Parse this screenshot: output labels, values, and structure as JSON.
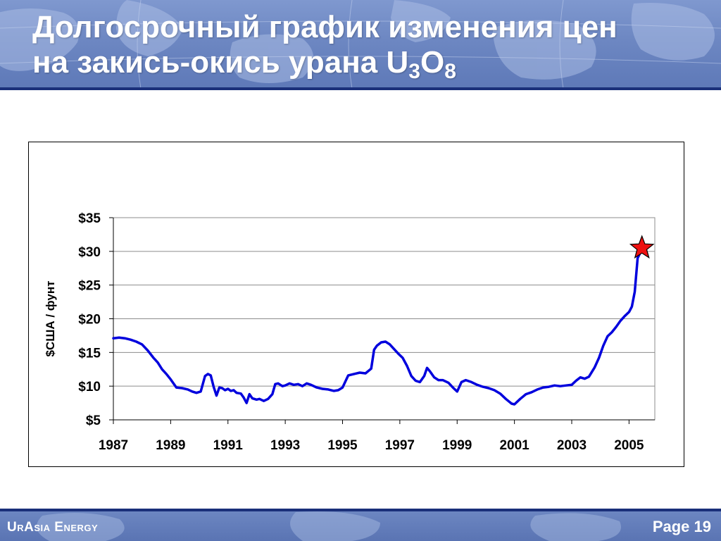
{
  "header": {
    "title_line1": "Долгосрочный график изменения цен",
    "title_line2_text": "на  закись-окись урана U",
    "title_sub_3": "3",
    "title_o": "O",
    "title_sub_8": "8"
  },
  "footer": {
    "brand": "UrAsia Energy",
    "page_label": "Page 19"
  },
  "colors": {
    "line": "#0000dd",
    "star": "#ee1111",
    "header_rule": "#1a2f7a"
  },
  "chart_data": {
    "type": "line",
    "title": "",
    "xlabel": "",
    "ylabel": "$США / фунт",
    "xlim": [
      1987,
      2005.9
    ],
    "ylim": [
      5,
      35
    ],
    "y_ticks": [
      5,
      10,
      15,
      20,
      25,
      30,
      35
    ],
    "y_tick_labels": [
      "$5",
      "$10",
      "$15",
      "$20",
      "$25",
      "$30",
      "$35"
    ],
    "x_ticks": [
      1987,
      1989,
      1991,
      1993,
      1995,
      1997,
      1999,
      2001,
      2003,
      2005
    ],
    "x_tick_labels": [
      "1987",
      "1989",
      "1991",
      "1993",
      "1995",
      "1997",
      "1999",
      "2001",
      "2003",
      "2005"
    ],
    "grid": true,
    "marker": {
      "shape": "star",
      "x": 2005.45,
      "y": 30.5
    },
    "series": [
      {
        "name": "",
        "x": [
          1987.0,
          1987.2,
          1987.4,
          1987.6,
          1987.8,
          1988.0,
          1988.2,
          1988.4,
          1988.55,
          1988.7,
          1988.85,
          1989.0,
          1989.2,
          1989.4,
          1989.6,
          1989.75,
          1989.9,
          1990.05,
          1990.2,
          1990.3,
          1990.4,
          1990.5,
          1990.6,
          1990.7,
          1990.8,
          1990.9,
          1991.0,
          1991.1,
          1991.2,
          1991.3,
          1991.45,
          1991.55,
          1991.65,
          1991.75,
          1991.85,
          1992.0,
          1992.1,
          1992.25,
          1992.4,
          1992.55,
          1992.65,
          1992.75,
          1992.9,
          1993.0,
          1993.15,
          1993.3,
          1993.45,
          1993.6,
          1993.75,
          1993.9,
          1994.1,
          1994.3,
          1994.5,
          1994.7,
          1994.85,
          1995.0,
          1995.2,
          1995.4,
          1995.6,
          1995.8,
          1996.0,
          1996.1,
          1996.2,
          1996.35,
          1996.5,
          1996.65,
          1996.8,
          1996.95,
          1997.1,
          1997.25,
          1997.4,
          1997.55,
          1997.7,
          1997.85,
          1997.95,
          1998.05,
          1998.2,
          1998.35,
          1998.5,
          1998.7,
          1998.85,
          1999.0,
          1999.15,
          1999.3,
          1999.5,
          1999.7,
          1999.9,
          2000.1,
          2000.3,
          2000.5,
          2000.7,
          2000.9,
          2001.0,
          2001.2,
          2001.4,
          2001.6,
          2001.8,
          2002.0,
          2002.2,
          2002.4,
          2002.6,
          2002.8,
          2003.0,
          2003.15,
          2003.3,
          2003.45,
          2003.6,
          2003.8,
          2003.95,
          2004.1,
          2004.25,
          2004.4,
          2004.55,
          2004.7,
          2004.85,
          2005.0,
          2005.1,
          2005.2,
          2005.3,
          2005.45
        ],
        "values": [
          17.1,
          17.2,
          17.1,
          16.9,
          16.6,
          16.2,
          15.3,
          14.2,
          13.5,
          12.5,
          11.8,
          11.0,
          9.8,
          9.7,
          9.5,
          9.2,
          9.0,
          9.2,
          11.5,
          11.8,
          11.6,
          9.9,
          8.6,
          9.8,
          9.7,
          9.4,
          9.6,
          9.3,
          9.4,
          9.0,
          8.9,
          8.3,
          7.5,
          8.8,
          8.2,
          8.0,
          8.1,
          7.8,
          8.1,
          8.8,
          10.3,
          10.4,
          10.0,
          10.1,
          10.4,
          10.2,
          10.3,
          10.0,
          10.4,
          10.2,
          9.8,
          9.6,
          9.5,
          9.3,
          9.4,
          9.8,
          11.6,
          11.8,
          12.0,
          11.9,
          12.6,
          15.4,
          16.0,
          16.5,
          16.6,
          16.2,
          15.5,
          14.8,
          14.2,
          13.0,
          11.5,
          10.8,
          10.6,
          11.5,
          12.7,
          12.2,
          11.3,
          10.9,
          10.9,
          10.5,
          9.8,
          9.2,
          10.6,
          10.9,
          10.6,
          10.2,
          9.9,
          9.7,
          9.4,
          8.9,
          8.1,
          7.4,
          7.3,
          8.1,
          8.8,
          9.1,
          9.5,
          9.8,
          9.9,
          10.1,
          10.0,
          10.1,
          10.2,
          10.8,
          11.3,
          11.1,
          11.4,
          12.8,
          14.2,
          16.0,
          17.4,
          18.0,
          18.8,
          19.7,
          20.4,
          21.0,
          21.8,
          24.0,
          29.0,
          30.3
        ]
      }
    ]
  }
}
